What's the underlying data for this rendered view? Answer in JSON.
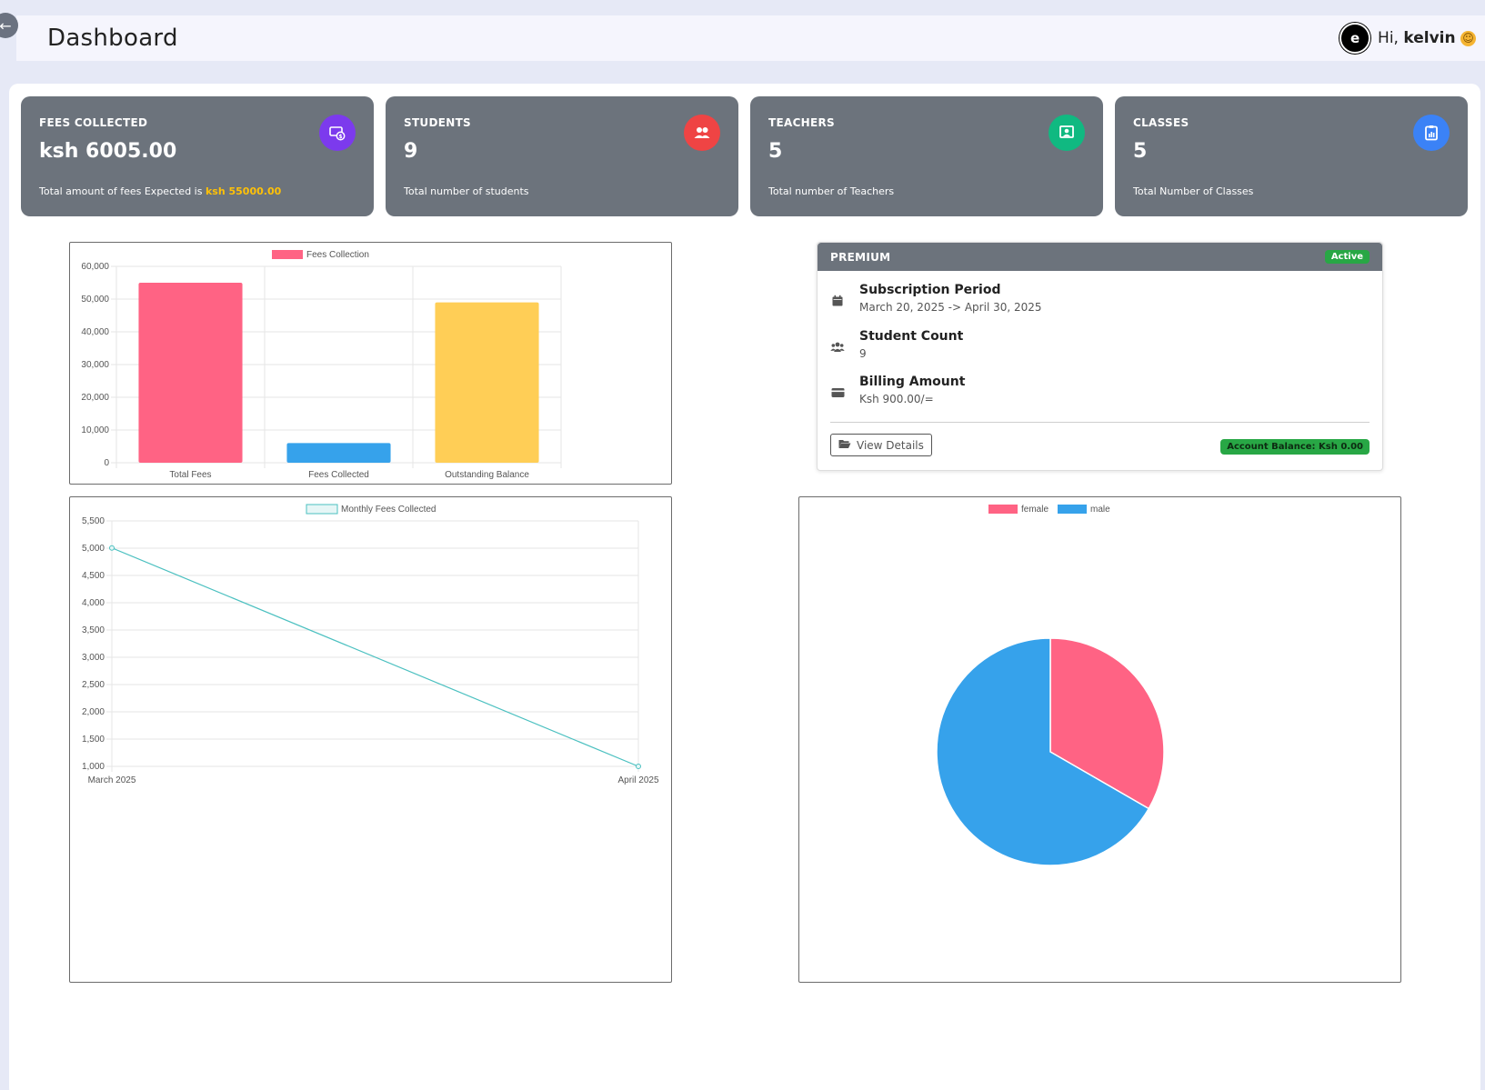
{
  "header": {
    "title": "Dashboard",
    "greeting_prefix": "Hi,",
    "user_name": "kelvin",
    "avatar_text": "e"
  },
  "stats": [
    {
      "label": "FEES COLLECTED",
      "value": "ksh 6005.00",
      "desc": "Total amount of fees Expected is",
      "desc_highlight": "ksh 55000.00",
      "icon": "money-icon",
      "color": "#7c3aed"
    },
    {
      "label": "STUDENTS",
      "value": "9",
      "desc": "Total number of students",
      "icon": "users-icon",
      "color": "#ef4444"
    },
    {
      "label": "TEACHERS",
      "value": "5",
      "desc": "Total number of Teachers",
      "icon": "teacher-icon",
      "color": "#10b981"
    },
    {
      "label": "CLASSES",
      "value": "5",
      "desc": "Total Number of Classes",
      "icon": "clipboard-icon",
      "color": "#3b82f6"
    }
  ],
  "premium": {
    "title": "PREMIUM",
    "status": "Active",
    "subscription_label": "Subscription Period",
    "subscription_value": "March 20, 2025 -> April 30, 2025",
    "student_count_label": "Student Count",
    "student_count_value": "9",
    "billing_label": "Billing Amount",
    "billing_value": "Ksh 900.00/=",
    "view_details": "View Details",
    "balance": "Account Balance: Ksh 0.00"
  },
  "chart_data": [
    {
      "type": "bar",
      "legend": [
        "Fees Collection"
      ],
      "categories": [
        "Total Fees",
        "Fees Collected",
        "Outstanding Balance"
      ],
      "values": [
        55000,
        6005,
        48995
      ],
      "colors": [
        "#ff6384",
        "#36a2eb",
        "#ffce56"
      ],
      "ylim": [
        0,
        60000
      ],
      "yticks": [
        "0",
        "10,000",
        "20,000",
        "30,000",
        "40,000",
        "50,000",
        "60,000"
      ],
      "grid": true
    },
    {
      "type": "line",
      "legend": [
        "Monthly Fees Collected"
      ],
      "categories": [
        "March 2025",
        "April 2025"
      ],
      "values": [
        5005,
        1000
      ],
      "color": "#4bc0c0",
      "ylim": [
        1000,
        5500
      ],
      "yticks": [
        "1,000",
        "1,500",
        "2,000",
        "2,500",
        "3,000",
        "3,500",
        "4,000",
        "4,500",
        "5,000",
        "5,500"
      ],
      "grid": true
    },
    {
      "type": "pie",
      "legend": [
        "female",
        "male"
      ],
      "values": [
        3,
        6
      ],
      "colors": [
        "#ff6384",
        "#36a2eb"
      ]
    }
  ]
}
